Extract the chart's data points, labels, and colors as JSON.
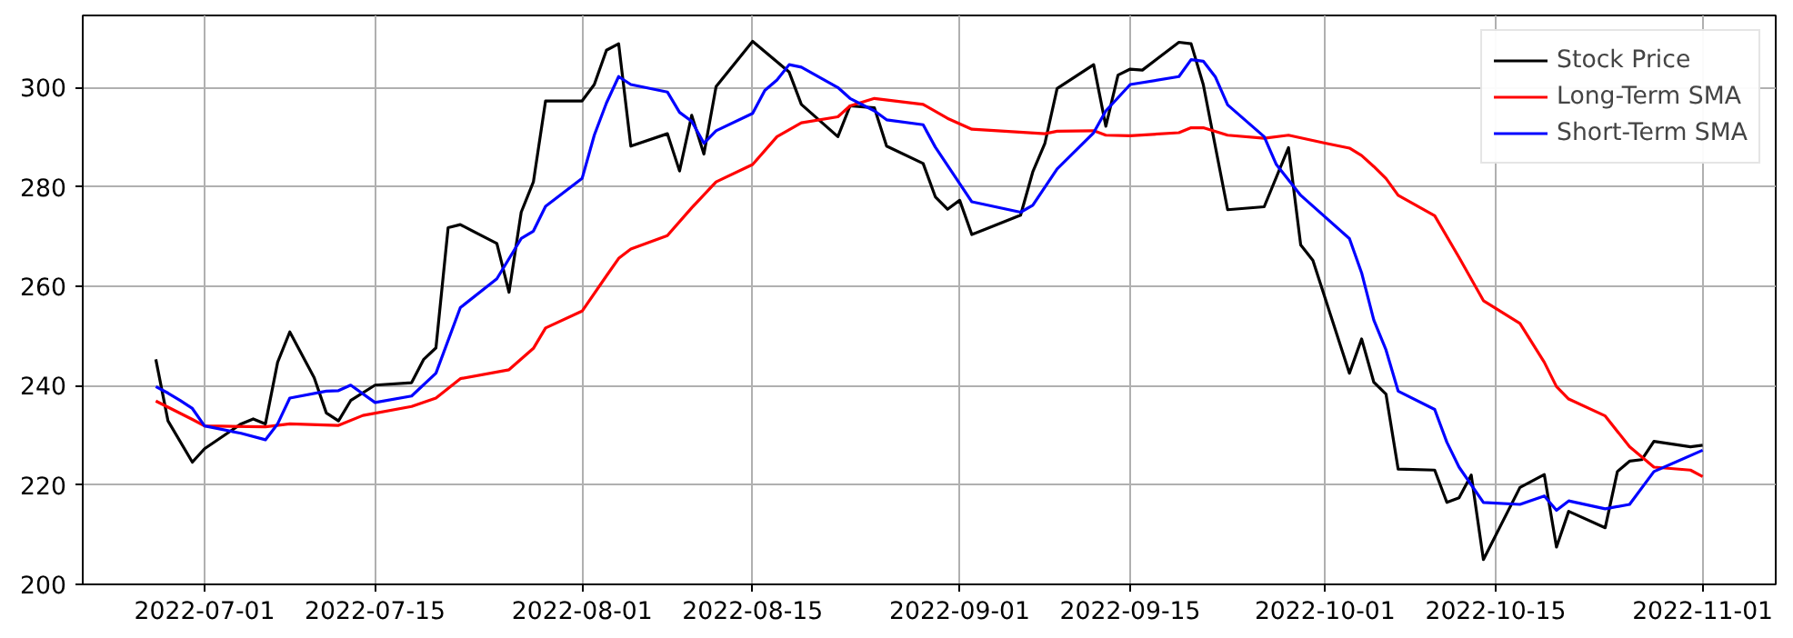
{
  "chart_data": {
    "type": "line",
    "xlim": [
      "2022-06-21",
      "2022-11-07"
    ],
    "ylim": [
      200,
      314.5
    ],
    "xticks": [
      "2022-07-01",
      "2022-07-15",
      "2022-08-01",
      "2022-08-15",
      "2022-09-01",
      "2022-09-15",
      "2022-10-01",
      "2022-10-15",
      "2022-11-01"
    ],
    "yticks": [
      200,
      220,
      240,
      260,
      280,
      300
    ],
    "grid": true,
    "legend": "top right",
    "line_style": "solid",
    "series": [
      {
        "name": "Stock Price",
        "color": "#000000",
        "x": [
          "2022-06-27",
          "2022-06-28",
          "2022-06-30",
          "2022-07-01",
          "2022-07-04",
          "2022-07-05",
          "2022-07-06",
          "2022-07-07",
          "2022-07-08",
          "2022-07-10",
          "2022-07-11",
          "2022-07-12",
          "2022-07-13",
          "2022-07-15",
          "2022-07-18",
          "2022-07-19",
          "2022-07-20",
          "2022-07-21",
          "2022-07-22",
          "2022-07-25",
          "2022-07-26",
          "2022-07-27",
          "2022-07-28",
          "2022-07-29",
          "2022-08-01",
          "2022-08-02",
          "2022-08-03",
          "2022-08-04",
          "2022-08-05",
          "2022-08-08",
          "2022-08-09",
          "2022-08-10",
          "2022-08-11",
          "2022-08-12",
          "2022-08-15",
          "2022-08-18",
          "2022-08-19",
          "2022-08-22",
          "2022-08-23",
          "2022-08-25",
          "2022-08-26",
          "2022-08-29",
          "2022-08-30",
          "2022-08-31",
          "2022-09-01",
          "2022-09-02",
          "2022-09-06",
          "2022-09-07",
          "2022-09-08",
          "2022-09-09",
          "2022-09-12",
          "2022-09-13",
          "2022-09-14",
          "2022-09-15",
          "2022-09-16",
          "2022-09-19",
          "2022-09-20",
          "2022-09-21",
          "2022-09-23",
          "2022-09-26",
          "2022-09-28",
          "2022-09-29",
          "2022-09-30",
          "2022-10-03",
          "2022-10-04",
          "2022-10-05",
          "2022-10-06",
          "2022-10-07",
          "2022-10-10",
          "2022-10-11",
          "2022-10-12",
          "2022-10-13",
          "2022-10-14",
          "2022-10-17",
          "2022-10-19",
          "2022-10-20",
          "2022-10-21",
          "2022-10-24",
          "2022-10-25",
          "2022-10-26",
          "2022-10-27",
          "2022-10-28",
          "2022-10-31",
          "2022-11-01"
        ],
        "values": [
          245.3,
          232.9,
          224.6,
          227.3,
          232.3,
          233.3,
          232.3,
          244.7,
          250.8,
          241.6,
          234.5,
          232.9,
          237.0,
          240.1,
          240.6,
          245.3,
          247.6,
          271.8,
          272.4,
          268.6,
          258.8,
          274.9,
          281.0,
          297.3,
          297.3,
          300.6,
          307.5,
          308.8,
          288.2,
          290.7,
          283.2,
          294.4,
          286.6,
          300.2,
          309.3,
          303.1,
          296.6,
          290.1,
          296.3,
          295.9,
          288.2,
          284.7,
          278.0,
          275.5,
          277.3,
          270.4,
          274.3,
          283.0,
          288.8,
          299.8,
          304.6,
          292.2,
          302.5,
          303.7,
          303.5,
          309.1,
          308.8,
          300.6,
          275.4,
          276.0,
          287.9,
          268.3,
          265.2,
          242.5,
          249.4,
          240.7,
          238.3,
          223.2,
          223.0,
          216.5,
          217.4,
          222.0,
          205.0,
          219.5,
          222.1,
          207.5,
          214.7,
          211.4,
          222.7,
          224.8,
          225.1,
          228.8,
          227.7,
          228.0
        ]
      },
      {
        "name": "Long-Term SMA",
        "color": "#ff0000",
        "x": [
          "2022-06-27",
          "2022-06-30",
          "2022-07-01",
          "2022-07-06",
          "2022-07-08",
          "2022-07-12",
          "2022-07-14",
          "2022-07-18",
          "2022-07-20",
          "2022-07-22",
          "2022-07-26",
          "2022-07-28",
          "2022-07-29",
          "2022-08-01",
          "2022-08-03",
          "2022-08-04",
          "2022-08-05",
          "2022-08-08",
          "2022-08-10",
          "2022-08-12",
          "2022-08-15",
          "2022-08-17",
          "2022-08-19",
          "2022-08-22",
          "2022-08-23",
          "2022-08-25",
          "2022-08-29",
          "2022-08-31",
          "2022-09-02",
          "2022-09-08",
          "2022-09-09",
          "2022-09-12",
          "2022-09-13",
          "2022-09-15",
          "2022-09-19",
          "2022-09-20",
          "2022-09-21",
          "2022-09-23",
          "2022-09-26",
          "2022-09-28",
          "2022-10-01",
          "2022-10-03",
          "2022-10-04",
          "2022-10-05",
          "2022-10-06",
          "2022-10-07",
          "2022-10-10",
          "2022-10-12",
          "2022-10-14",
          "2022-10-17",
          "2022-10-19",
          "2022-10-20",
          "2022-10-21",
          "2022-10-24",
          "2022-10-26",
          "2022-10-28",
          "2022-10-31",
          "2022-11-01"
        ],
        "values": [
          236.9,
          233.2,
          231.9,
          231.7,
          232.3,
          232.0,
          234.0,
          235.8,
          237.5,
          241.4,
          243.2,
          247.5,
          251.6,
          255.0,
          262.1,
          265.6,
          267.5,
          270.2,
          275.8,
          281.0,
          284.5,
          290.1,
          292.9,
          294.1,
          296.3,
          297.8,
          296.6,
          293.8,
          291.6,
          290.7,
          291.2,
          291.3,
          290.4,
          290.3,
          290.9,
          291.9,
          291.9,
          290.4,
          289.8,
          290.4,
          288.8,
          287.8,
          286.3,
          284.1,
          281.7,
          278.3,
          274.2,
          265.8,
          257.1,
          252.5,
          244.7,
          239.8,
          237.3,
          233.9,
          227.7,
          223.6,
          223.0,
          221.7
        ]
      },
      {
        "name": "Short-Term SMA",
        "color": "#0000ff",
        "x": [
          "2022-06-27",
          "2022-06-28",
          "2022-06-29",
          "2022-06-30",
          "2022-07-01",
          "2022-07-04",
          "2022-07-06",
          "2022-07-07",
          "2022-07-08",
          "2022-07-11",
          "2022-07-12",
          "2022-07-13",
          "2022-07-15",
          "2022-07-18",
          "2022-07-20",
          "2022-07-22",
          "2022-07-25",
          "2022-07-27",
          "2022-07-28",
          "2022-07-29",
          "2022-08-01",
          "2022-08-02",
          "2022-08-03",
          "2022-08-04",
          "2022-08-05",
          "2022-08-08",
          "2022-08-09",
          "2022-08-10",
          "2022-08-11",
          "2022-08-12",
          "2022-08-15",
          "2022-08-16",
          "2022-08-17",
          "2022-08-18",
          "2022-08-19",
          "2022-08-22",
          "2022-08-23",
          "2022-08-25",
          "2022-08-26",
          "2022-08-29",
          "2022-08-30",
          "2022-09-02",
          "2022-09-06",
          "2022-09-07",
          "2022-09-09",
          "2022-09-12",
          "2022-09-13",
          "2022-09-15",
          "2022-09-19",
          "2022-09-20",
          "2022-09-21",
          "2022-09-22",
          "2022-09-23",
          "2022-09-26",
          "2022-09-27",
          "2022-09-29",
          "2022-10-03",
          "2022-10-04",
          "2022-10-05",
          "2022-10-06",
          "2022-10-07",
          "2022-10-10",
          "2022-10-11",
          "2022-10-12",
          "2022-10-14",
          "2022-10-17",
          "2022-10-19",
          "2022-10-20",
          "2022-10-21",
          "2022-10-24",
          "2022-10-26",
          "2022-10-28",
          "2022-11-01"
        ],
        "values": [
          239.8,
          238.5,
          237.0,
          235.4,
          231.9,
          230.4,
          229.1,
          232.3,
          237.5,
          238.9,
          239.0,
          240.1,
          236.6,
          237.9,
          242.5,
          255.7,
          261.5,
          269.6,
          271.1,
          276.1,
          281.7,
          290.4,
          296.9,
          302.2,
          300.6,
          299.1,
          295.0,
          293.2,
          288.8,
          291.3,
          294.8,
          299.4,
          301.5,
          304.6,
          304.1,
          300.0,
          297.8,
          295.3,
          293.5,
          292.5,
          288.0,
          277.0,
          274.9,
          276.3,
          283.6,
          290.9,
          295.3,
          300.6,
          302.2,
          305.6,
          305.3,
          302.1,
          296.5,
          290.1,
          284.5,
          278.3,
          269.6,
          262.7,
          253.2,
          247.2,
          238.9,
          235.2,
          228.6,
          223.6,
          216.5,
          216.1,
          217.8,
          214.9,
          216.8,
          215.2,
          216.1,
          222.7,
          227.0
        ]
      }
    ]
  }
}
